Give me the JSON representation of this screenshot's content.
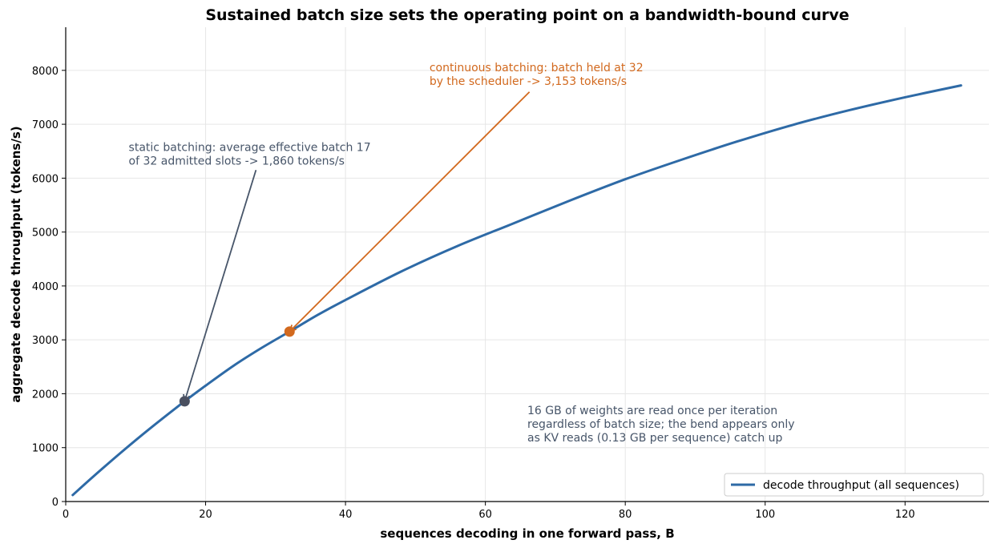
{
  "chart_data": {
    "type": "line",
    "title": "Sustained batch size sets the operating point on a bandwidth-bound curve",
    "xlabel": "sequences decoding in one forward pass, B",
    "ylabel": "aggregate decode throughput (tokens/s)",
    "xlim": [
      0,
      132
    ],
    "ylim": [
      0,
      8800
    ],
    "xticks": [
      0,
      20,
      40,
      60,
      80,
      100,
      120
    ],
    "yticks": [
      0,
      1000,
      2000,
      3000,
      4000,
      5000,
      6000,
      7000,
      8000
    ],
    "grid": true,
    "legend_position": "lower-right",
    "series": [
      {
        "name": "decode throughput (all sequences)",
        "color": "#2e6aa6",
        "x": [
          1,
          4,
          8,
          12,
          17,
          20,
          24,
          28,
          32,
          36,
          40,
          48,
          56,
          64,
          72,
          80,
          88,
          96,
          104,
          112,
          120,
          128
        ],
        "values": [
          120,
          470,
          920,
          1350,
          1860,
          2150,
          2520,
          2850,
          3153,
          3460,
          3740,
          4270,
          4740,
          5160,
          5580,
          5980,
          6340,
          6680,
          6990,
          7260,
          7500,
          7720
        ]
      }
    ],
    "points": [
      {
        "label": "static",
        "x": 17,
        "y": 1860,
        "color": "#4a5060"
      },
      {
        "label": "continuous",
        "x": 32,
        "y": 3153,
        "color": "#d2691e"
      }
    ],
    "annotations": [
      {
        "lines": [
          "static batching: average effective batch 17",
          "of 32 admitted slots  ->  1,860 tokens/s"
        ],
        "color": "#475569",
        "text_x": 9,
        "text_y": 6500,
        "arrow_from": [
          27.2,
          6150
        ],
        "arrow_to": [
          17,
          1860
        ]
      },
      {
        "lines": [
          "continuous batching: batch held at 32",
          "by the scheduler  ->  3,153 tokens/s"
        ],
        "color": "#d2691e",
        "text_x": 52,
        "text_y": 7980,
        "arrow_from": [
          66.3,
          7600
        ],
        "arrow_to": [
          32,
          3153
        ]
      },
      {
        "lines": [
          "16 GB of weights are read once per iteration",
          "regardless of batch size; the bend appears only",
          "as KV reads (0.13 GB per sequence) catch up"
        ],
        "color": "#475569",
        "text_x": 66,
        "text_y": 1620
      }
    ]
  }
}
